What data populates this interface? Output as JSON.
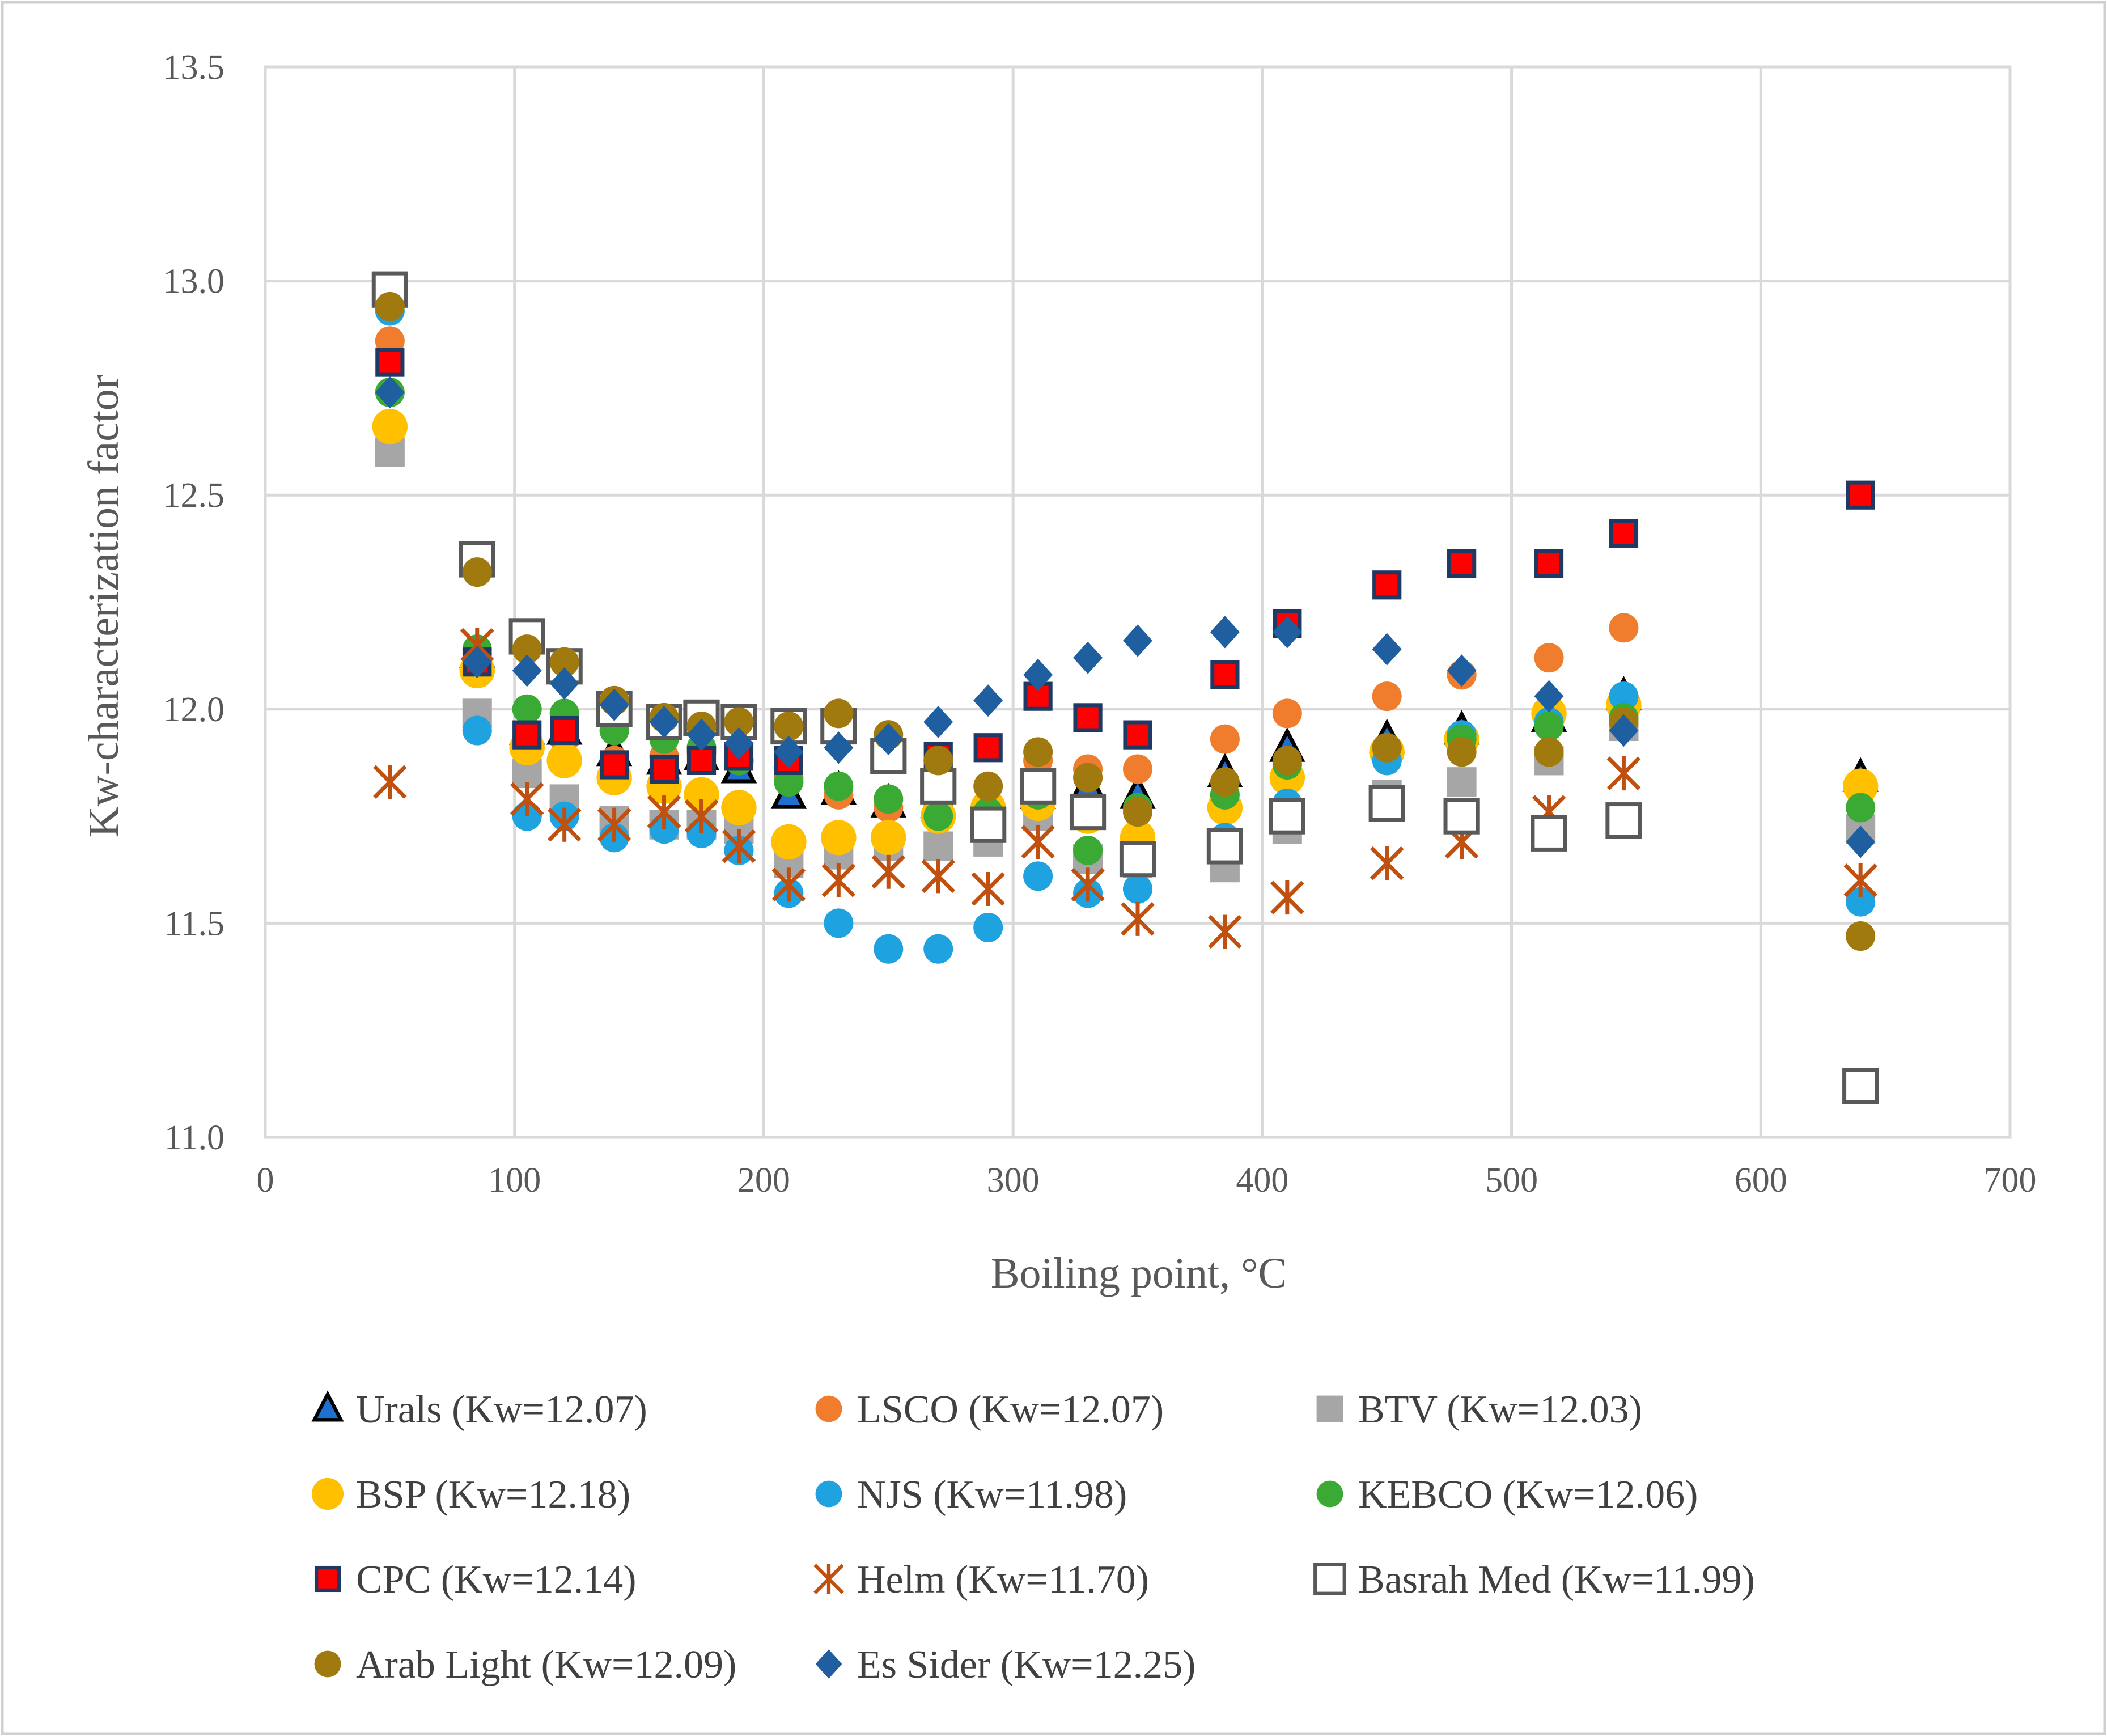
{
  "chart_data": {
    "type": "scatter",
    "xlabel": "Boiling point, °C",
    "ylabel": "Kw-characterization factor",
    "xlim": [
      0,
      700
    ],
    "ylim": [
      11.0,
      13.5
    ],
    "xticks": [
      0,
      100,
      200,
      300,
      400,
      500,
      600,
      700
    ],
    "yticks": [
      11.0,
      11.5,
      12.0,
      12.5,
      13.0,
      13.5
    ],
    "xtick_labels": [
      "0",
      "100",
      "200",
      "300",
      "400",
      "500",
      "600",
      "700"
    ],
    "ytick_labels": [
      "11.0",
      "11.5",
      "12.0",
      "12.5",
      "13.0",
      "13.5"
    ],
    "grid": true,
    "legend_position": "bottom",
    "series": [
      {
        "name": "Urals (Kw=12.07)",
        "marker": "triangle",
        "color": "#1f6fd1",
        "stroke": "#000000",
        "x": [
          85,
          105,
          120,
          140,
          160,
          175,
          190,
          210,
          230,
          250,
          270,
          290,
          310,
          330,
          350,
          385,
          410,
          450,
          480,
          515,
          545,
          640
        ],
        "y": [
          12.13,
          11.95,
          11.95,
          11.9,
          11.88,
          11.89,
          11.86,
          11.8,
          11.81,
          11.78,
          11.78,
          11.76,
          11.8,
          11.82,
          11.8,
          11.85,
          11.91,
          11.93,
          11.95,
          11.98,
          12.03,
          11.84
        ]
      },
      {
        "name": "LSCO (Kw=12.07)",
        "marker": "circle",
        "color": "#f07c2e",
        "stroke": "none",
        "x": [
          50,
          85,
          105,
          120,
          140,
          160,
          175,
          190,
          210,
          230,
          250,
          270,
          290,
          310,
          330,
          350,
          385,
          410,
          450,
          480,
          515,
          545
        ],
        "y": [
          12.86,
          12.13,
          11.93,
          11.93,
          11.88,
          11.89,
          11.9,
          11.88,
          11.84,
          11.8,
          11.77,
          11.78,
          11.78,
          11.88,
          11.86,
          11.86,
          11.93,
          11.99,
          12.03,
          12.08,
          12.12,
          12.19
        ]
      },
      {
        "name": "BTV (Kw=12.03)",
        "marker": "square",
        "color": "#a6a6a6",
        "stroke": "none",
        "x": [
          50,
          85,
          105,
          120,
          140,
          160,
          175,
          190,
          210,
          230,
          250,
          270,
          290,
          310,
          330,
          350,
          385,
          410,
          450,
          480,
          515,
          545,
          640
        ],
        "y": [
          12.6,
          11.99,
          11.85,
          11.79,
          11.74,
          11.73,
          11.73,
          11.72,
          11.64,
          11.66,
          11.68,
          11.68,
          11.69,
          11.75,
          11.65,
          11.64,
          11.63,
          11.72,
          11.8,
          11.83,
          11.88,
          11.96,
          11.72
        ]
      },
      {
        "name": "BSP (Kw=12.18)",
        "marker": "circle",
        "color": "#ffc000",
        "stroke": "none",
        "x": [
          50,
          85,
          105,
          120,
          140,
          160,
          175,
          190,
          210,
          230,
          250,
          270,
          290,
          310,
          330,
          350,
          385,
          410,
          450,
          480,
          515,
          545,
          640
        ],
        "y": [
          12.66,
          12.09,
          11.91,
          11.88,
          11.84,
          11.82,
          11.8,
          11.77,
          11.69,
          11.7,
          11.7,
          11.75,
          11.77,
          11.78,
          11.75,
          11.7,
          11.77,
          11.84,
          11.9,
          11.93,
          11.99,
          12.01,
          11.82
        ]
      },
      {
        "name": "NJS (Kw=11.98)",
        "marker": "circle",
        "color": "#1fa2e0",
        "stroke": "none",
        "x": [
          50,
          85,
          105,
          120,
          140,
          160,
          175,
          190,
          210,
          230,
          250,
          270,
          290,
          310,
          330,
          350,
          385,
          410,
          450,
          480,
          515,
          545,
          640
        ],
        "y": [
          12.93,
          11.95,
          11.75,
          11.75,
          11.7,
          11.72,
          11.71,
          11.67,
          11.57,
          11.5,
          11.44,
          11.44,
          11.49,
          11.61,
          11.57,
          11.58,
          11.7,
          11.78,
          11.88,
          11.94,
          11.97,
          12.03,
          11.55
        ]
      },
      {
        "name": "KEBCO (Kw=12.06)",
        "marker": "circle",
        "color": "#3aaa35",
        "stroke": "none",
        "x": [
          50,
          85,
          105,
          120,
          140,
          160,
          175,
          190,
          210,
          230,
          250,
          270,
          290,
          310,
          330,
          350,
          385,
          410,
          450,
          480,
          515,
          545,
          640
        ],
        "y": [
          12.74,
          12.14,
          12.0,
          11.99,
          11.95,
          11.93,
          11.91,
          11.88,
          11.83,
          11.82,
          11.79,
          11.75,
          11.76,
          11.8,
          11.67,
          11.77,
          11.8,
          11.87,
          11.91,
          11.93,
          11.96,
          11.98,
          11.77
        ]
      },
      {
        "name": "CPC (Kw=12.14)",
        "marker": "square",
        "color": "#ff0000",
        "stroke": "#1f3864",
        "x": [
          50,
          85,
          105,
          120,
          140,
          160,
          175,
          190,
          210,
          270,
          290,
          310,
          330,
          350,
          385,
          410,
          450,
          480,
          515,
          545,
          640
        ],
        "y": [
          12.81,
          12.11,
          11.94,
          11.95,
          11.87,
          11.86,
          11.88,
          11.89,
          11.88,
          11.89,
          11.91,
          12.03,
          11.98,
          11.94,
          12.08,
          12.2,
          12.29,
          12.34,
          12.34,
          12.41,
          12.5
        ]
      },
      {
        "name": "Helm (Kw=11.70)",
        "marker": "star",
        "color": "#c0500f",
        "stroke": "none",
        "x": [
          50,
          85,
          105,
          120,
          140,
          160,
          175,
          190,
          210,
          230,
          250,
          270,
          290,
          310,
          330,
          350,
          385,
          410,
          450,
          480,
          515,
          545,
          640
        ],
        "y": [
          11.83,
          12.15,
          11.79,
          11.73,
          11.73,
          11.76,
          11.75,
          11.68,
          11.59,
          11.6,
          11.62,
          11.61,
          11.58,
          11.69,
          11.59,
          11.51,
          11.48,
          11.56,
          11.64,
          11.69,
          11.76,
          11.85,
          11.6
        ]
      },
      {
        "name": "Basrah Med (Kw=11.99)",
        "marker": "square-open",
        "color": "#ffffff",
        "stroke": "#595959",
        "x": [
          50,
          85,
          105,
          120,
          140,
          160,
          175,
          190,
          210,
          230,
          250,
          270,
          290,
          310,
          330,
          350,
          385,
          410,
          450,
          480,
          515,
          545,
          640
        ],
        "y": [
          12.98,
          12.35,
          12.17,
          12.1,
          12.0,
          11.97,
          11.98,
          11.97,
          11.96,
          11.96,
          11.89,
          11.82,
          11.73,
          11.82,
          11.76,
          11.65,
          11.68,
          11.75,
          11.78,
          11.75,
          11.71,
          11.74,
          11.12
        ]
      },
      {
        "name": "Arab Light (Kw=12.09)",
        "marker": "circle",
        "color": "#a07a0f",
        "stroke": "none",
        "x": [
          50,
          85,
          105,
          120,
          140,
          160,
          175,
          190,
          210,
          230,
          250,
          270,
          290,
          310,
          330,
          350,
          385,
          410,
          450,
          480,
          515,
          545,
          640
        ],
        "y": [
          12.94,
          12.32,
          12.14,
          12.11,
          12.02,
          11.98,
          11.96,
          11.97,
          11.96,
          11.99,
          11.94,
          11.88,
          11.82,
          11.9,
          11.84,
          11.76,
          11.83,
          11.88,
          11.91,
          11.9,
          11.9,
          11.97,
          11.47
        ]
      },
      {
        "name": "Es Sider (Kw=12.25)",
        "marker": "diamond",
        "color": "#1f5fa0",
        "stroke": "none",
        "x": [
          50,
          85,
          105,
          120,
          140,
          160,
          175,
          190,
          210,
          230,
          250,
          270,
          290,
          310,
          330,
          350,
          385,
          410,
          450,
          480,
          515,
          545,
          640
        ],
        "y": [
          12.74,
          12.11,
          12.09,
          12.06,
          12.01,
          11.97,
          11.94,
          11.92,
          11.9,
          11.91,
          11.93,
          11.97,
          12.02,
          12.08,
          12.12,
          12.16,
          12.18,
          12.18,
          12.14,
          12.09,
          12.03,
          11.95,
          11.69
        ]
      }
    ]
  }
}
